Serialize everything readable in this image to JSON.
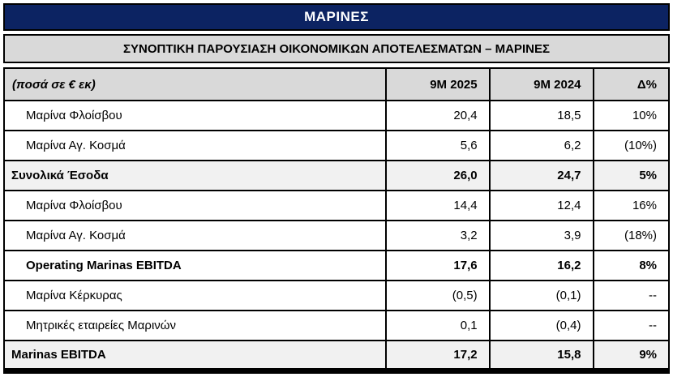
{
  "title": "ΜΑΡΙΝΕΣ",
  "subtitle": "ΣΥΝΟΠΤΙΚΗ ΠΑΡΟΥΣΙΑΣΗ ΟΙΚΟΝΟΜΙΚΩΝ ΑΠΟΤΕΛΕΣΜΑΤΩΝ – ΜΑΡΙΝΕΣ",
  "colors": {
    "navy": "#0c2362",
    "header_gray": "#d9d9d9",
    "total_row_gray": "#f1f1f1",
    "border": "#000000"
  },
  "table": {
    "unit_label": "(ποσά σε € εκ)",
    "columns": [
      "9M 2025",
      "9M 2024",
      "Δ%"
    ],
    "rows": [
      {
        "label": "Μαρίνα Φλοίσβου",
        "v2025": "20,4",
        "v2024": "18,5",
        "delta": "10%",
        "style": "regular"
      },
      {
        "label": "Μαρίνα Αγ. Κοσμά",
        "v2025": "5,6",
        "v2024": "6,2",
        "delta": "(10%)",
        "style": "regular"
      },
      {
        "label": "Συνολικά Έσοδα",
        "v2025": "26,0",
        "v2024": "24,7",
        "delta": "5%",
        "style": "total"
      },
      {
        "label": "Μαρίνα Φλοίσβου",
        "v2025": "14,4",
        "v2024": "12,4",
        "delta": "16%",
        "style": "regular"
      },
      {
        "label": "Μαρίνα Αγ. Κοσμά",
        "v2025": "3,2",
        "v2024": "3,9",
        "delta": "(18%)",
        "style": "regular"
      },
      {
        "label": "Operating Marinas EBITDA",
        "v2025": "17,6",
        "v2024": "16,2",
        "delta": "8%",
        "style": "bold"
      },
      {
        "label": "Μαρίνα Κέρκυρας",
        "v2025": "(0,5)",
        "v2024": "(0,1)",
        "delta": "--",
        "style": "regular"
      },
      {
        "label": "Μητρικές εταιρείες Μαρινών",
        "v2025": "0,1",
        "v2024": "(0,4)",
        "delta": "--",
        "style": "regular"
      },
      {
        "label": "Marinas EBITDA",
        "v2025": "17,2",
        "v2024": "15,8",
        "delta": "9%",
        "style": "total"
      }
    ]
  }
}
